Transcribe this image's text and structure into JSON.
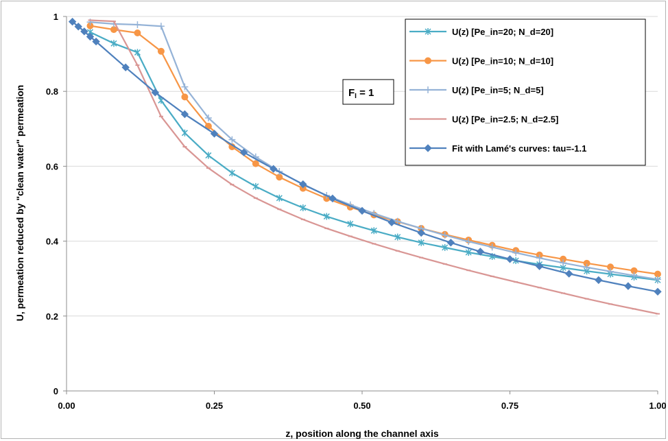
{
  "chart_data": {
    "type": "line",
    "title": "",
    "xlabel": "z, position along the channel axis",
    "ylabel": "U, permeation reduced by \"clean water\" permeation",
    "xlim": [
      0,
      1
    ],
    "ylim": [
      0,
      1
    ],
    "xticks": [
      0,
      0.25,
      0.5,
      0.75,
      1
    ],
    "xtick_labels": [
      "0.00",
      "0.25",
      "0.50",
      "0.75",
      "1.00"
    ],
    "yticks": [
      0,
      0.2,
      0.4,
      0.6,
      0.8,
      1
    ],
    "ytick_labels": [
      "0",
      "0.2",
      "0.4",
      "0.6",
      "0.8",
      "1"
    ],
    "grid": "horizontal",
    "legend_position": "top-right",
    "annotation": {
      "text": "F",
      "subscript": "I",
      "suffix": " = 1"
    },
    "series": [
      {
        "name": "U(z)  [Pe_in=20; N_d=20]",
        "color": "#4aacc5",
        "marker": "star",
        "x": [
          0.04,
          0.08,
          0.12,
          0.16,
          0.2,
          0.24,
          0.28,
          0.32,
          0.36,
          0.4,
          0.44,
          0.48,
          0.52,
          0.56,
          0.6,
          0.64,
          0.68,
          0.72,
          0.76,
          0.8,
          0.84,
          0.88,
          0.92,
          0.96,
          1.0
        ],
        "y": [
          0.958,
          0.928,
          0.904,
          0.776,
          0.689,
          0.629,
          0.582,
          0.546,
          0.515,
          0.489,
          0.466,
          0.446,
          0.428,
          0.411,
          0.396,
          0.383,
          0.37,
          0.359,
          0.348,
          0.338,
          0.329,
          0.32,
          0.312,
          0.304,
          0.296
        ]
      },
      {
        "name": "U(z)  [Pe_in=10; N_d=10]",
        "color": "#f79646",
        "marker": "circle",
        "x": [
          0.04,
          0.08,
          0.12,
          0.16,
          0.2,
          0.24,
          0.28,
          0.32,
          0.36,
          0.4,
          0.44,
          0.48,
          0.52,
          0.56,
          0.6,
          0.64,
          0.68,
          0.72,
          0.76,
          0.8,
          0.84,
          0.88,
          0.92,
          0.96,
          1.0
        ],
        "y": [
          0.975,
          0.965,
          0.956,
          0.907,
          0.785,
          0.707,
          0.652,
          0.607,
          0.571,
          0.541,
          0.514,
          0.491,
          0.47,
          0.452,
          0.434,
          0.418,
          0.403,
          0.389,
          0.375,
          0.363,
          0.352,
          0.341,
          0.331,
          0.321,
          0.312
        ]
      },
      {
        "name": "U(z)  [Pe_in=5; N_d=5]",
        "color": "#95b3d7",
        "marker": "plus",
        "x": [
          0.04,
          0.08,
          0.12,
          0.16,
          0.2,
          0.24,
          0.28,
          0.32,
          0.36,
          0.4,
          0.44,
          0.48,
          0.52,
          0.56,
          0.6,
          0.64,
          0.68,
          0.72,
          0.76,
          0.8,
          0.84,
          0.88,
          0.92,
          0.96,
          1.0
        ],
        "y": [
          0.985,
          0.98,
          0.978,
          0.974,
          0.812,
          0.729,
          0.671,
          0.625,
          0.586,
          0.551,
          0.522,
          0.497,
          0.474,
          0.453,
          0.434,
          0.416,
          0.399,
          0.384,
          0.369,
          0.355,
          0.342,
          0.33,
          0.319,
          0.308,
          0.298
        ]
      },
      {
        "name": "U(z)  [Pe_in=2.5; N_d=2.5]",
        "color": "#d99694",
        "marker": "dash",
        "x": [
          0.04,
          0.08,
          0.12,
          0.16,
          0.2,
          0.24,
          0.28,
          0.32,
          0.36,
          0.4,
          0.44,
          0.48,
          0.52,
          0.56,
          0.6,
          0.64,
          0.68,
          0.72,
          0.76,
          0.8,
          0.84,
          0.88,
          0.92,
          0.96,
          1.0
        ],
        "y": [
          0.99,
          0.987,
          0.87,
          0.733,
          0.652,
          0.595,
          0.551,
          0.515,
          0.485,
          0.458,
          0.434,
          0.413,
          0.393,
          0.374,
          0.356,
          0.339,
          0.322,
          0.306,
          0.291,
          0.276,
          0.261,
          0.246,
          0.232,
          0.219,
          0.206
        ]
      },
      {
        "name": "Fit with Lamé's curves: tau=-1.1",
        "color": "#4f81bd",
        "marker": "diamond",
        "x": [
          0.01,
          0.02,
          0.03,
          0.04,
          0.05,
          0.1,
          0.15,
          0.2,
          0.25,
          0.3,
          0.35,
          0.4,
          0.45,
          0.5,
          0.55,
          0.6,
          0.65,
          0.7,
          0.75,
          0.8,
          0.85,
          0.9,
          0.95,
          1.0
        ],
        "y": [
          0.986,
          0.973,
          0.96,
          0.946,
          0.933,
          0.864,
          0.797,
          0.739,
          0.687,
          0.637,
          0.593,
          0.552,
          0.514,
          0.481,
          0.45,
          0.422,
          0.396,
          0.372,
          0.352,
          0.333,
          0.313,
          0.296,
          0.28,
          0.265
        ]
      }
    ]
  }
}
